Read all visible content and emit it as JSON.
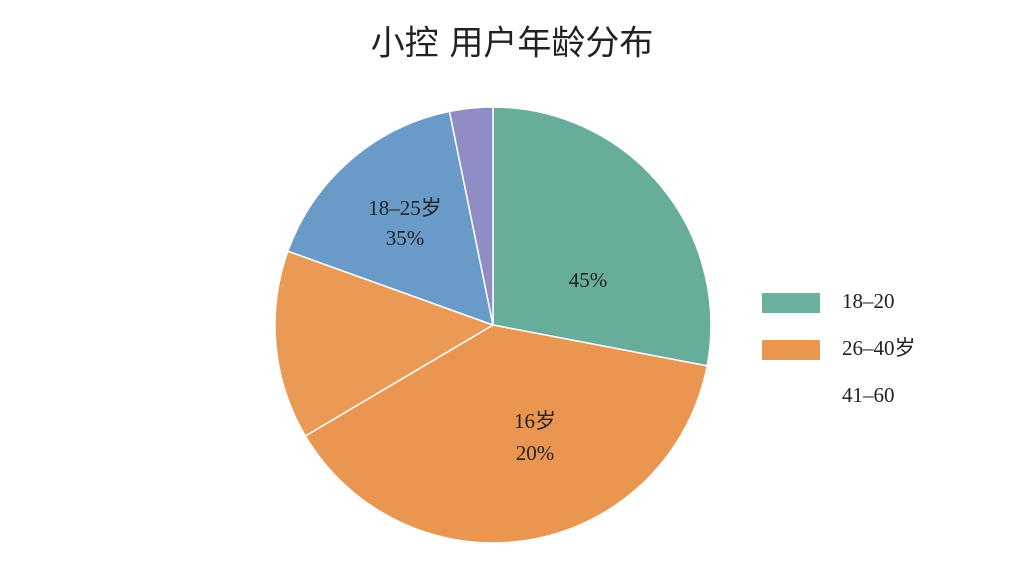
{
  "chart_data": {
    "type": "pie",
    "title": "小控 用户年龄分布",
    "values": [
      28,
      38.5,
      14,
      16.3,
      3.2
    ],
    "colors": [
      "#68ad9c",
      "#ea9550",
      "#eb9a56",
      "#6a9ac8",
      "#8f8dc4"
    ],
    "annotations": [
      "18–25岁",
      "35%",
      "45%",
      "16岁",
      "20%"
    ],
    "legend": [
      {
        "label": "18–20",
        "color": "#6bb09f"
      },
      {
        "label": "26–40岁",
        "color": "#e9964f"
      },
      {
        "label": "41–60"
      }
    ]
  }
}
